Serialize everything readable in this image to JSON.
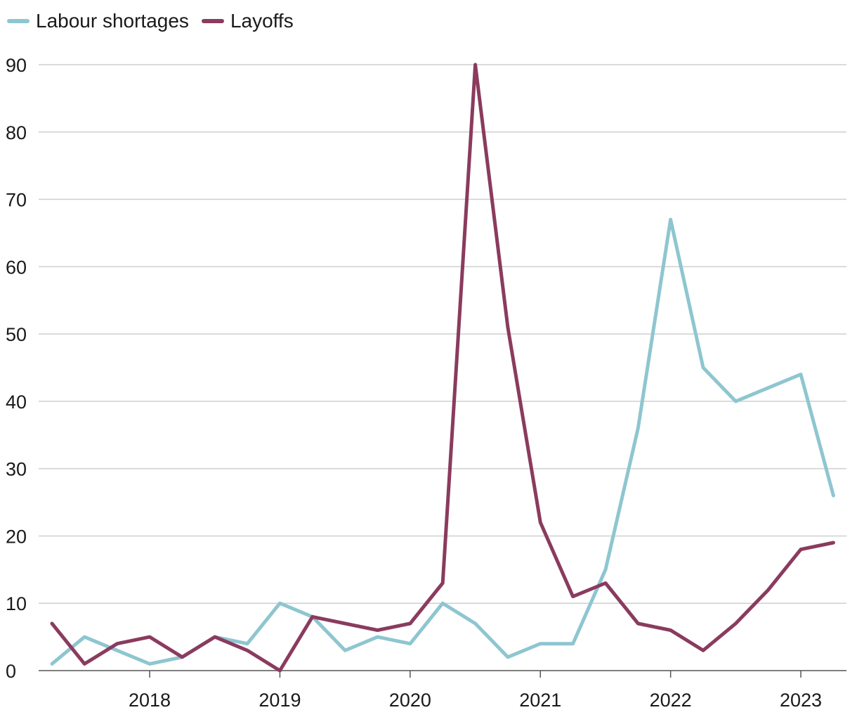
{
  "chart_data": {
    "type": "line",
    "x": [
      "2017-04",
      "2017-07",
      "2017-10",
      "2018-01",
      "2018-04",
      "2018-07",
      "2018-10",
      "2019-01",
      "2019-04",
      "2019-07",
      "2019-10",
      "2020-01",
      "2020-04",
      "2020-07",
      "2020-10",
      "2021-01",
      "2021-04",
      "2021-07",
      "2021-10",
      "2022-01",
      "2022-04",
      "2022-07",
      "2022-10",
      "2023-01",
      "2023-04"
    ],
    "series": [
      {
        "name": "Labour shortages",
        "color": "#8ec6d0",
        "values": [
          1,
          5,
          3,
          1,
          2,
          5,
          4,
          10,
          8,
          3,
          5,
          4,
          10,
          7,
          2,
          4,
          4,
          15,
          36,
          67,
          45,
          40,
          42,
          44,
          26
        ]
      },
      {
        "name": "Layoffs",
        "color": "#8a3b5e",
        "values": [
          7,
          1,
          4,
          5,
          2,
          5,
          3,
          0,
          8,
          7,
          6,
          7,
          13,
          90,
          51,
          22,
          11,
          13,
          7,
          6,
          3,
          7,
          12,
          18,
          19
        ]
      }
    ],
    "xlabel": "",
    "ylabel": "",
    "ylim": [
      0,
      90
    ],
    "yticks": [
      0,
      10,
      20,
      30,
      40,
      50,
      60,
      70,
      80,
      90
    ],
    "xticks": [
      "2018",
      "2019",
      "2020",
      "2021",
      "2022",
      "2023"
    ],
    "grid": true,
    "legend_position": "top-left"
  }
}
